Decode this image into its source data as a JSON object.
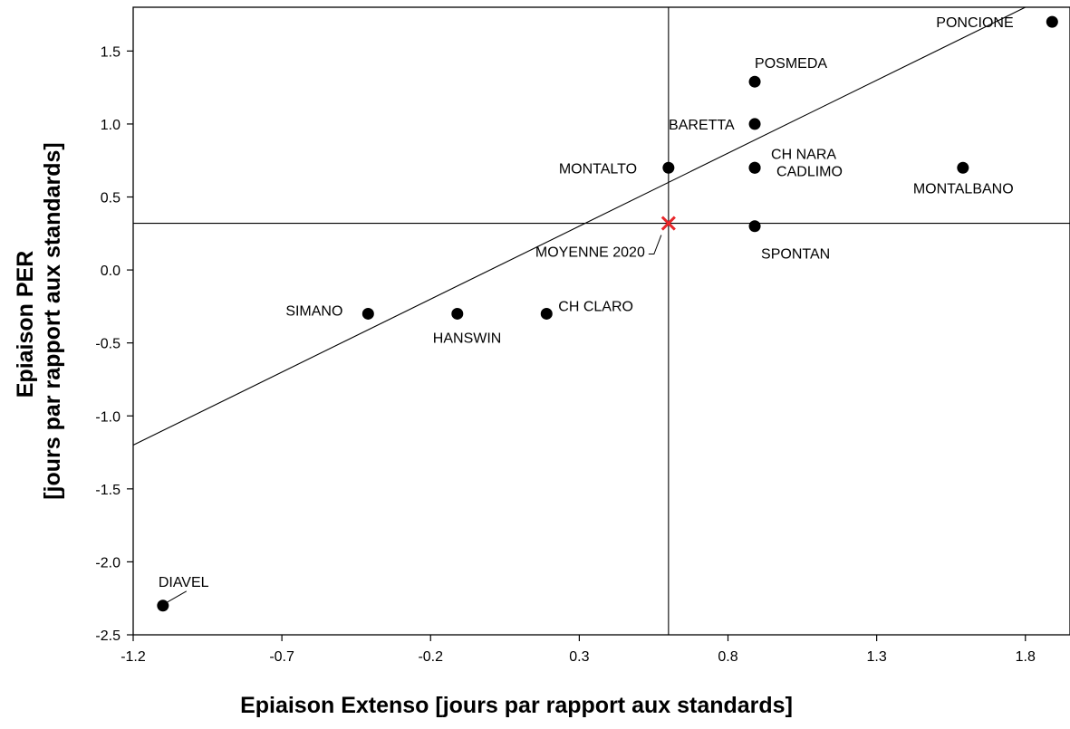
{
  "chart_data": {
    "type": "scatter",
    "xlabel": "Epiaison Extenso [jours par rapport aux standards]",
    "ylabel_lines": [
      "Epiaison PER",
      "[jours par rapport aux standards]"
    ],
    "xlim": [
      -1.2,
      1.95
    ],
    "ylim": [
      -2.5,
      1.8
    ],
    "x_ticks": [
      -1.2,
      -0.7,
      -0.2,
      0.3,
      0.8,
      1.3,
      1.8
    ],
    "x_tick_labels": [
      "-1.2",
      "-0.7",
      "-0.2",
      "0.3",
      "0.8",
      "1.3",
      "1.8"
    ],
    "y_ticks": [
      -2.5,
      -2.0,
      -1.5,
      -1.0,
      -0.5,
      0.0,
      0.5,
      1.0,
      1.5
    ],
    "y_tick_labels": [
      "-2.5",
      "-2.0",
      "-1.5",
      "-1.0",
      "-0.5",
      "0.0",
      "0.5",
      "1.0",
      "1.5"
    ],
    "grid": false,
    "points": [
      {
        "label": "PONCIONE",
        "x": 1.89,
        "y": 1.7
      },
      {
        "label": "POSMEDA",
        "x": 0.89,
        "y": 1.29
      },
      {
        "label": "BARETTA",
        "x": 0.89,
        "y": 1.0
      },
      {
        "label": "MONTALTO",
        "x": 0.6,
        "y": 0.7
      },
      {
        "label": "CH NARA",
        "x": 0.89,
        "y": 0.7
      },
      {
        "label": "CADLIMO",
        "x": 0.89,
        "y": 0.7
      },
      {
        "label": "MONTALBANO",
        "x": 1.59,
        "y": 0.7
      },
      {
        "label": "SPONTAN",
        "x": 0.89,
        "y": 0.3
      },
      {
        "label": "SIMANO",
        "x": -0.41,
        "y": -0.3
      },
      {
        "label": "HANSWIN",
        "x": -0.11,
        "y": -0.3
      },
      {
        "label": "CH CLARO",
        "x": 0.19,
        "y": -0.3
      },
      {
        "label": "DIAVEL",
        "x": -1.1,
        "y": -2.3
      }
    ],
    "mean_marker": {
      "label": "MOYENNE  2020",
      "x": 0.6,
      "y": 0.32,
      "color": "#e8272a"
    },
    "reference_line": {
      "type": "y=x"
    },
    "point_color": "#000000"
  }
}
